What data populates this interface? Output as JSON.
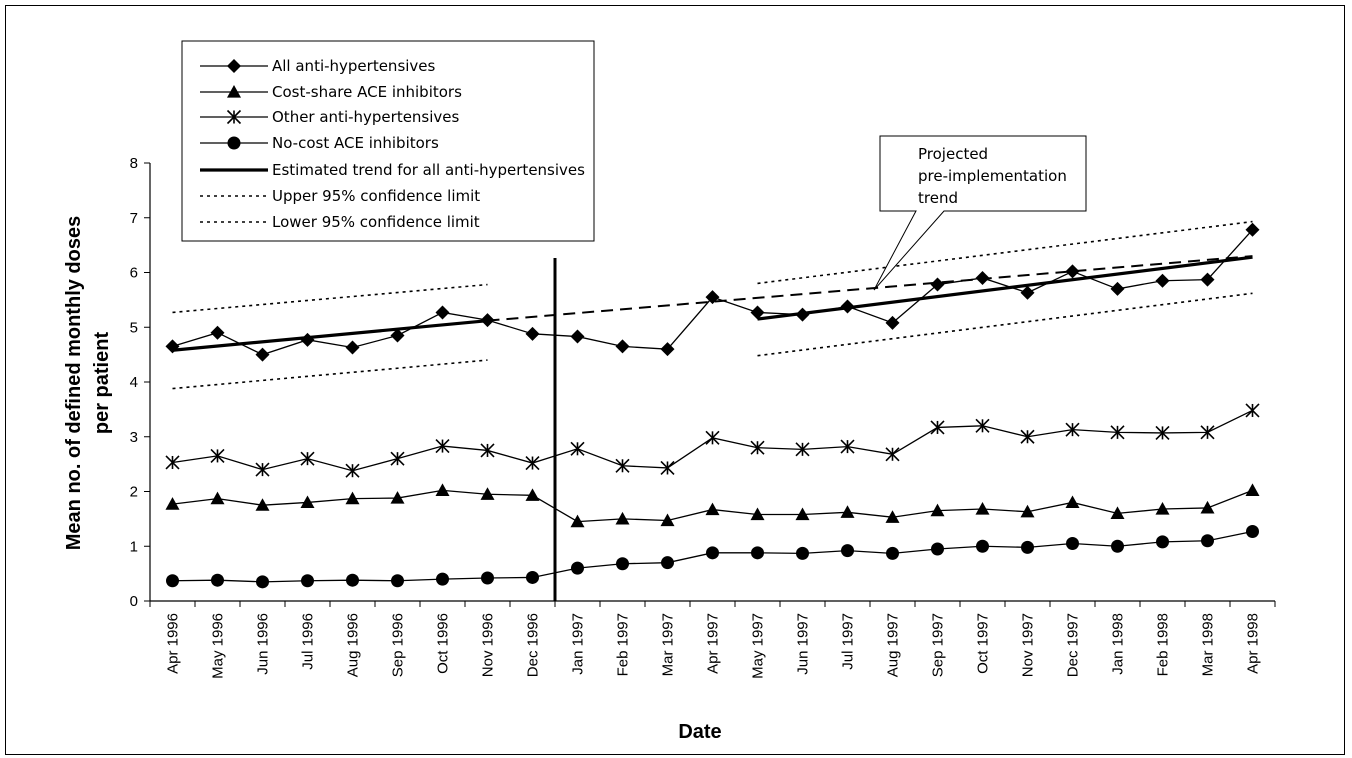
{
  "chart_data": {
    "type": "line",
    "xlabel": "Date",
    "ylabel": [
      "Mean no. of defined monthly doses",
      "per patient"
    ],
    "ylim": [
      0,
      8
    ],
    "yticks": [
      "0",
      "1",
      "2",
      "3",
      "4",
      "5",
      "6",
      "7",
      "8"
    ],
    "categories": [
      "Apr 1996",
      "May 1996",
      "Jun 1996",
      "Jul 1996",
      "Aug 1996",
      "Sep 1996",
      "Oct 1996",
      "Nov 1996",
      "Dec 1996",
      "Jan 1997",
      "Feb 1997",
      "Mar 1997",
      "Apr 1997",
      "May 1997",
      "Jun 1997",
      "Jul 1997",
      "Aug 1997",
      "Sep 1997",
      "Oct 1997",
      "Nov 1997",
      "Dec 1997",
      "Jan 1998",
      "Feb 1998",
      "Mar 1998",
      "Apr 1998"
    ],
    "policy_line_after": "Dec 1996",
    "series": [
      {
        "name": "All anti-hypertensives",
        "marker": "diamond",
        "values": [
          4.65,
          4.9,
          4.5,
          4.77,
          4.63,
          4.85,
          5.27,
          5.13,
          4.88,
          4.83,
          4.65,
          4.6,
          5.55,
          5.27,
          5.23,
          5.38,
          5.08,
          5.78,
          5.9,
          5.63,
          6.02,
          5.7,
          5.85,
          5.87,
          6.78
        ]
      },
      {
        "name": "Cost-share ACE inhibitors",
        "marker": "triangle",
        "values": [
          1.77,
          1.87,
          1.75,
          1.8,
          1.87,
          1.88,
          2.02,
          1.95,
          1.93,
          1.45,
          1.5,
          1.47,
          1.67,
          1.58,
          1.58,
          1.62,
          1.53,
          1.65,
          1.68,
          1.63,
          1.8,
          1.6,
          1.68,
          1.7,
          2.02
        ]
      },
      {
        "name": "Other anti-hypertensives",
        "marker": "star",
        "values": [
          2.53,
          2.65,
          2.4,
          2.6,
          2.38,
          2.6,
          2.83,
          2.75,
          2.52,
          2.78,
          2.47,
          2.43,
          2.98,
          2.8,
          2.77,
          2.82,
          2.68,
          3.17,
          3.2,
          3.0,
          3.13,
          3.08,
          3.07,
          3.08,
          3.48
        ]
      },
      {
        "name": "No-cost ACE inhibitors",
        "marker": "circle",
        "values": [
          0.37,
          0.38,
          0.35,
          0.37,
          0.38,
          0.37,
          0.4,
          0.42,
          0.43,
          0.6,
          0.68,
          0.7,
          0.88,
          0.88,
          0.87,
          0.92,
          0.87,
          0.95,
          1.0,
          0.98,
          1.05,
          1.0,
          1.08,
          1.1,
          1.27
        ]
      }
    ],
    "trend_lines": [
      {
        "name": "Estimated trend for all anti-hypertensives",
        "style": "solid-thick",
        "segments": [
          {
            "from": "Apr 1996",
            "to": "Nov 1996",
            "y": [
              4.58,
              5.12
            ]
          },
          {
            "from": "May 1997",
            "to": "Apr 1998",
            "y": [
              5.15,
              6.28
            ]
          }
        ]
      },
      {
        "name": "Upper 95% confidence limit",
        "style": "dotted",
        "segments": [
          {
            "from": "Apr 1996",
            "to": "Nov 1996",
            "y": [
              5.27,
              5.78
            ]
          },
          {
            "from": "May 1997",
            "to": "Apr 1998",
            "y": [
              5.8,
              6.93
            ]
          }
        ]
      },
      {
        "name": "Lower 95% confidence limit",
        "style": "dotted",
        "segments": [
          {
            "from": "Apr 1996",
            "to": "Nov 1996",
            "y": [
              3.88,
              4.4
            ]
          },
          {
            "from": "May 1997",
            "to": "Apr 1998",
            "y": [
              4.48,
              5.62
            ]
          }
        ]
      },
      {
        "name": "Projected pre-implementation trend",
        "style": "dashed",
        "segments": [
          {
            "from": "Nov 1996",
            "to": "Apr 1998",
            "y": [
              5.12,
              6.3
            ]
          }
        ]
      }
    ],
    "legend_placement": "top-left",
    "annotation": [
      "Projected",
      "pre-implementation",
      "trend"
    ]
  }
}
